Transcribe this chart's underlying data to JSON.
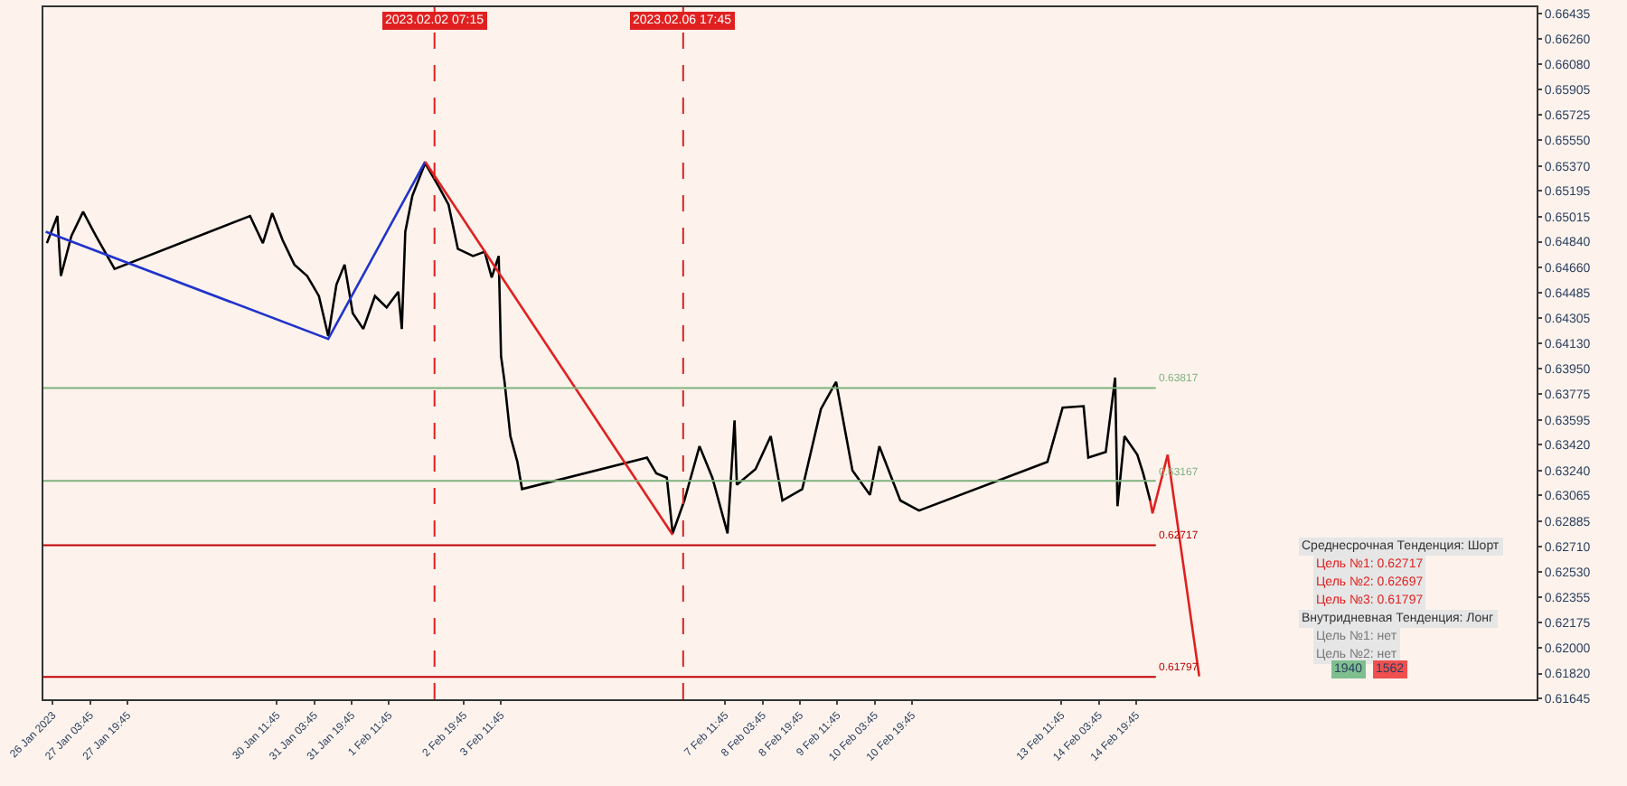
{
  "chart_data": {
    "type": "line",
    "xlim": [
      "2023-01-26T07:45",
      "2023-02-21T23:15"
    ],
    "ylim": [
      0.6164,
      0.6648
    ],
    "xticks": [
      {
        "value": "2023-01-26T11:45",
        "label": "26 Jan 2023"
      },
      {
        "value": "2023-01-27T03:45",
        "label": "27 Jan 03:45"
      },
      {
        "value": "2023-01-27T19:45",
        "label": "27 Jan 19:45"
      },
      {
        "value": "2023-01-30T11:45",
        "label": "30 Jan 11:45"
      },
      {
        "value": "2023-01-31T03:45",
        "label": "31 Jan 03:45"
      },
      {
        "value": "2023-01-31T19:45",
        "label": "31 Jan 19:45"
      },
      {
        "value": "2023-02-01T11:45",
        "label": "1 Feb 11:45"
      },
      {
        "value": "2023-02-02T19:45",
        "label": "2 Feb 19:45"
      },
      {
        "value": "2023-02-03T11:45",
        "label": "3 Feb 11:45"
      },
      {
        "value": "2023-02-07T11:45",
        "label": "7 Feb 11:45"
      },
      {
        "value": "2023-02-08T03:45",
        "label": "8 Feb 03:45"
      },
      {
        "value": "2023-02-08T19:45",
        "label": "8 Feb 19:45"
      },
      {
        "value": "2023-02-09T11:45",
        "label": "9 Feb 11:45"
      },
      {
        "value": "2023-02-10T03:45",
        "label": "10 Feb 03:45"
      },
      {
        "value": "2023-02-10T19:45",
        "label": "10 Feb 19:45"
      },
      {
        "value": "2023-02-13T11:45",
        "label": "13 Feb 11:45"
      },
      {
        "value": "2023-02-14T03:45",
        "label": "14 Feb 03:45"
      },
      {
        "value": "2023-02-14T19:45",
        "label": "14 Feb 19:45"
      }
    ],
    "yticks": [
      {
        "value": 0.66435,
        "label": "0.66435"
      },
      {
        "value": 0.6626,
        "label": "0.66260"
      },
      {
        "value": 0.6608,
        "label": "0.66080"
      },
      {
        "value": 0.65905,
        "label": "0.65905"
      },
      {
        "value": 0.65725,
        "label": "0.65725"
      },
      {
        "value": 0.6555,
        "label": "0.65550"
      },
      {
        "value": 0.6537,
        "label": "0.65370"
      },
      {
        "value": 0.65195,
        "label": "0.65195"
      },
      {
        "value": 0.65015,
        "label": "0.65015"
      },
      {
        "value": 0.6484,
        "label": "0.64840"
      },
      {
        "value": 0.6466,
        "label": "0.64660"
      },
      {
        "value": 0.64485,
        "label": "0.64485"
      },
      {
        "value": 0.64305,
        "label": "0.64305"
      },
      {
        "value": 0.6413,
        "label": "0.64130"
      },
      {
        "value": 0.6395,
        "label": "0.63950"
      },
      {
        "value": 0.63775,
        "label": "0.63775"
      },
      {
        "value": 0.63595,
        "label": "0.63595"
      },
      {
        "value": 0.6342,
        "label": "0.63420"
      },
      {
        "value": 0.6324,
        "label": "0.63240"
      },
      {
        "value": 0.63065,
        "label": "0.63065"
      },
      {
        "value": 0.62885,
        "label": "0.62885"
      },
      {
        "value": 0.6271,
        "label": "0.62710"
      },
      {
        "value": 0.6253,
        "label": "0.62530"
      },
      {
        "value": 0.62355,
        "label": "0.62355"
      },
      {
        "value": 0.62175,
        "label": "0.62175"
      },
      {
        "value": 0.62,
        "label": "0.62000"
      },
      {
        "value": 0.6182,
        "label": "0.61820"
      },
      {
        "value": 0.61645,
        "label": "0.61645"
      }
    ],
    "grid": false,
    "marker": "none",
    "series": [
      {
        "color": "#000000",
        "x": [
          "2023-01-26T09:15",
          "2023-01-26T13:45",
          "2023-01-26T15:15",
          "2023-01-26T19:45",
          "2023-01-27T00:45",
          "2023-01-27T06:15",
          "2023-01-27T14:15",
          "2023-01-30T00:15",
          "2023-01-30T05:45",
          "2023-01-30T09:45",
          "2023-01-30T14:15",
          "2023-01-30T19:15",
          "2023-01-31T00:45",
          "2023-01-31T05:45",
          "2023-01-31T09:45",
          "2023-01-31T13:15",
          "2023-01-31T16:45",
          "2023-01-31T20:15",
          "2023-02-01T00:45",
          "2023-02-01T05:45",
          "2023-02-01T10:45",
          "2023-02-01T15:45",
          "2023-02-01T17:15",
          "2023-02-01T18:45",
          "2023-02-01T21:45",
          "2023-02-02T03:15",
          "2023-02-02T09:15",
          "2023-02-02T13:15",
          "2023-02-02T17:15",
          "2023-02-02T23:45",
          "2023-02-03T04:45",
          "2023-02-03T07:45",
          "2023-02-03T10:45",
          "2023-02-03T11:45",
          "2023-02-03T13:15",
          "2023-02-03T15:45",
          "2023-02-03T18:45",
          "2023-02-03T20:45",
          "2023-02-06T02:15",
          "2023-02-06T06:15",
          "2023-02-06T10:45",
          "2023-02-06T13:15",
          "2023-02-06T18:15",
          "2023-02-07T00:45",
          "2023-02-07T06:15",
          "2023-02-07T12:45",
          "2023-02-07T15:45",
          "2023-02-07T16:45",
          "2023-02-08T00:45",
          "2023-02-08T07:15",
          "2023-02-08T12:15",
          "2023-02-08T20:45",
          "2023-02-09T04:45",
          "2023-02-09T11:15",
          "2023-02-09T18:15",
          "2023-02-10T01:45",
          "2023-02-10T05:45",
          "2023-02-10T14:45",
          "2023-02-10T22:45",
          "2023-02-13T05:45",
          "2023-02-13T12:15",
          "2023-02-13T21:15",
          "2023-02-13T23:15",
          "2023-02-14T06:45",
          "2023-02-14T10:45",
          "2023-02-14T11:45",
          "2023-02-14T14:45",
          "2023-02-14T20:15",
          "2023-02-14T22:45",
          "2023-02-15T01:45"
        ],
        "values": [
          0.6483,
          0.6502,
          0.646,
          0.6488,
          0.6505,
          0.6488,
          0.6465,
          0.6502,
          0.6483,
          0.6504,
          0.6485,
          0.6468,
          0.646,
          0.6446,
          0.6418,
          0.6454,
          0.6468,
          0.6434,
          0.6423,
          0.6446,
          0.6438,
          0.6449,
          0.6423,
          0.6491,
          0.6516,
          0.6539,
          0.6522,
          0.651,
          0.6479,
          0.6474,
          0.6477,
          0.6459,
          0.6474,
          0.6404,
          0.6386,
          0.6348,
          0.633,
          0.6311,
          0.6333,
          0.6322,
          0.6319,
          0.628,
          0.6303,
          0.6341,
          0.6319,
          0.628,
          0.6359,
          0.6314,
          0.6325,
          0.6348,
          0.6303,
          0.6311,
          0.6367,
          0.6386,
          0.6324,
          0.6307,
          0.6341,
          0.6303,
          0.6296,
          0.633,
          0.6368,
          0.6369,
          0.6333,
          0.6337,
          0.6389,
          0.6299,
          0.6348,
          0.6335,
          0.6322,
          0.6303
        ]
      },
      {
        "color": "#2233cc",
        "x": [
          "2023-01-26T08:45",
          "2023-01-31T09:45",
          "2023-02-02T03:15"
        ],
        "values": [
          0.6491,
          0.6416,
          0.654
        ]
      },
      {
        "color": "#e02020",
        "x": [
          "2023-02-02T03:15",
          "2023-02-06T13:15"
        ],
        "values": [
          0.654,
          0.6279
        ]
      },
      {
        "color": "#e02020",
        "x": [
          "2023-02-15T01:45",
          "2023-02-15T02:45",
          "2023-02-15T09:15",
          "2023-02-15T22:45"
        ],
        "values": [
          0.6303,
          0.6294,
          0.6335,
          0.618
        ]
      }
    ],
    "ref_lines": [
      {
        "axis": "x",
        "value": "2023-02-02T07:15",
        "label": "2023.02.02 07:15",
        "color": "#e02020",
        "line_style": "dashed"
      },
      {
        "axis": "x",
        "value": "2023-02-06T17:45",
        "label": "2023.02.06 17:45",
        "color": "#e02020",
        "line_style": "dashed"
      },
      {
        "axis": "y",
        "value": 0.63817,
        "label": "0.63817",
        "color": "#7fb27f",
        "line_style": "solid"
      },
      {
        "axis": "y",
        "value": 0.63167,
        "label": "0.63167",
        "color": "#7fb27f",
        "line_style": "solid"
      },
      {
        "axis": "y",
        "value": 0.62717,
        "label": "0.62717",
        "color": "#c00000",
        "line_style": "solid"
      },
      {
        "axis": "y",
        "value": 0.61797,
        "label": "0.61797",
        "color": "#c00000",
        "line_style": "solid"
      }
    ],
    "annotations": [
      "Среднесрочная Тенденция: Шорт",
      "Цель №1: 0.62717",
      "Цель №2: 0.62697",
      "Цель №3: 0.61797",
      "Внутридневная Тенденция: Лонг",
      "Цель №1: нет",
      "Цель №2: нет",
      "1940",
      "1562"
    ]
  }
}
